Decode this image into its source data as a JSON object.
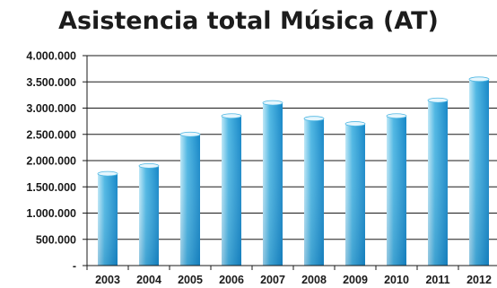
{
  "chart_data": {
    "type": "bar",
    "title": "Asistencia total Música (AT)",
    "xlabel": "",
    "ylabel": "",
    "categories": [
      "2003",
      "2004",
      "2005",
      "2006",
      "2007",
      "2008",
      "2009",
      "2010",
      "2011",
      "2012"
    ],
    "values": [
      1750000,
      1900000,
      2500000,
      2850000,
      3100000,
      2800000,
      2700000,
      2850000,
      3150000,
      3550000
    ],
    "ylim": [
      0,
      4000000
    ],
    "yticks": [
      0,
      500000,
      1000000,
      1500000,
      2000000,
      2500000,
      3000000,
      3500000,
      4000000
    ],
    "ytick_labels": [
      "-",
      "500.000",
      "1.000.000",
      "1.500.000",
      "2.000.000",
      "2.500.000",
      "3.000.000",
      "3.500.000",
      "4.000.000"
    ],
    "grid": true,
    "legend": "none",
    "colors": {
      "bar_light": "#bfe8f7",
      "bar_mid": "#4fb7e3",
      "bar_dark": "#1787c7",
      "grid": "#1a1a1a"
    }
  }
}
